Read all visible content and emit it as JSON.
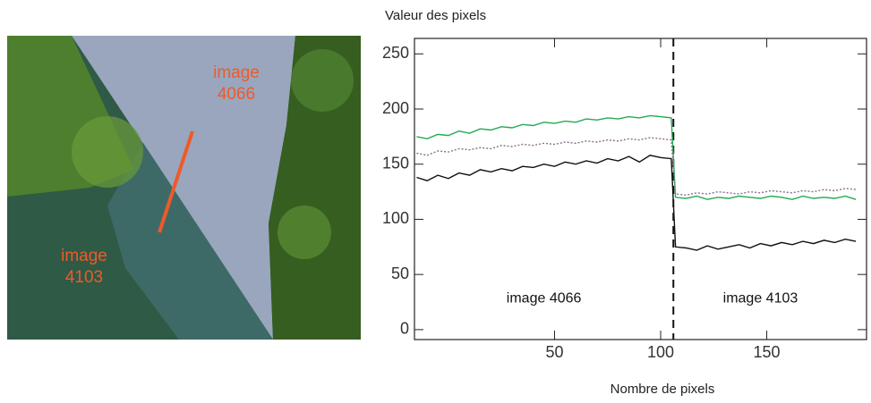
{
  "photo": {
    "label_top": [
      "image",
      "4066"
    ],
    "label_bottom": [
      "image",
      "4103"
    ]
  },
  "chart_data": {
    "type": "line",
    "ylabel": "Valeur des pixels",
    "xlabel": "Nombre de pixels",
    "x": [
      -15,
      -10,
      -5,
      0,
      5,
      10,
      15,
      20,
      25,
      30,
      35,
      40,
      45,
      50,
      55,
      60,
      65,
      70,
      75,
      80,
      85,
      90,
      95,
      100,
      105,
      107,
      112,
      117,
      122,
      127,
      132,
      137,
      142,
      147,
      152,
      157,
      162,
      167,
      172,
      177,
      182,
      187,
      192
    ],
    "series": [
      {
        "color": "#22aa55",
        "style": "solid",
        "values": [
          175,
          173,
          177,
          176,
          180,
          178,
          182,
          181,
          184,
          183,
          186,
          185,
          188,
          187,
          189,
          188,
          191,
          190,
          192,
          191,
          193,
          192,
          194,
          193,
          192,
          120,
          119,
          121,
          118,
          120,
          119,
          121,
          120,
          119,
          121,
          120,
          118,
          121,
          119,
          120,
          119,
          121,
          118
        ]
      },
      {
        "color": "#8a6f8a",
        "style": "dotted",
        "values": [
          160,
          158,
          162,
          161,
          164,
          163,
          165,
          164,
          167,
          166,
          168,
          167,
          169,
          168,
          170,
          169,
          171,
          170,
          172,
          171,
          173,
          172,
          174,
          173,
          172,
          123,
          122,
          124,
          123,
          125,
          124,
          123,
          125,
          124,
          126,
          125,
          124,
          126,
          125,
          127,
          126,
          128,
          127
        ]
      },
      {
        "color": "#111111",
        "style": "solid",
        "values": [
          138,
          135,
          140,
          137,
          142,
          140,
          145,
          143,
          146,
          144,
          148,
          147,
          150,
          148,
          152,
          150,
          153,
          151,
          155,
          153,
          157,
          152,
          158,
          156,
          155,
          75,
          74,
          72,
          76,
          73,
          75,
          77,
          74,
          78,
          76,
          79,
          77,
          80,
          78,
          81,
          79,
          82,
          80
        ]
      }
    ],
    "divider_x": 106,
    "annotations": [
      {
        "text": "image 4066",
        "x": 45,
        "y": 28
      },
      {
        "text": "image 4103",
        "x": 147,
        "y": 28
      }
    ],
    "xlim": [
      -16,
      197
    ],
    "ylim": [
      -9,
      264
    ],
    "xticks": [
      50,
      100,
      150
    ],
    "yticks": [
      0,
      50,
      100,
      150,
      200,
      250
    ]
  }
}
